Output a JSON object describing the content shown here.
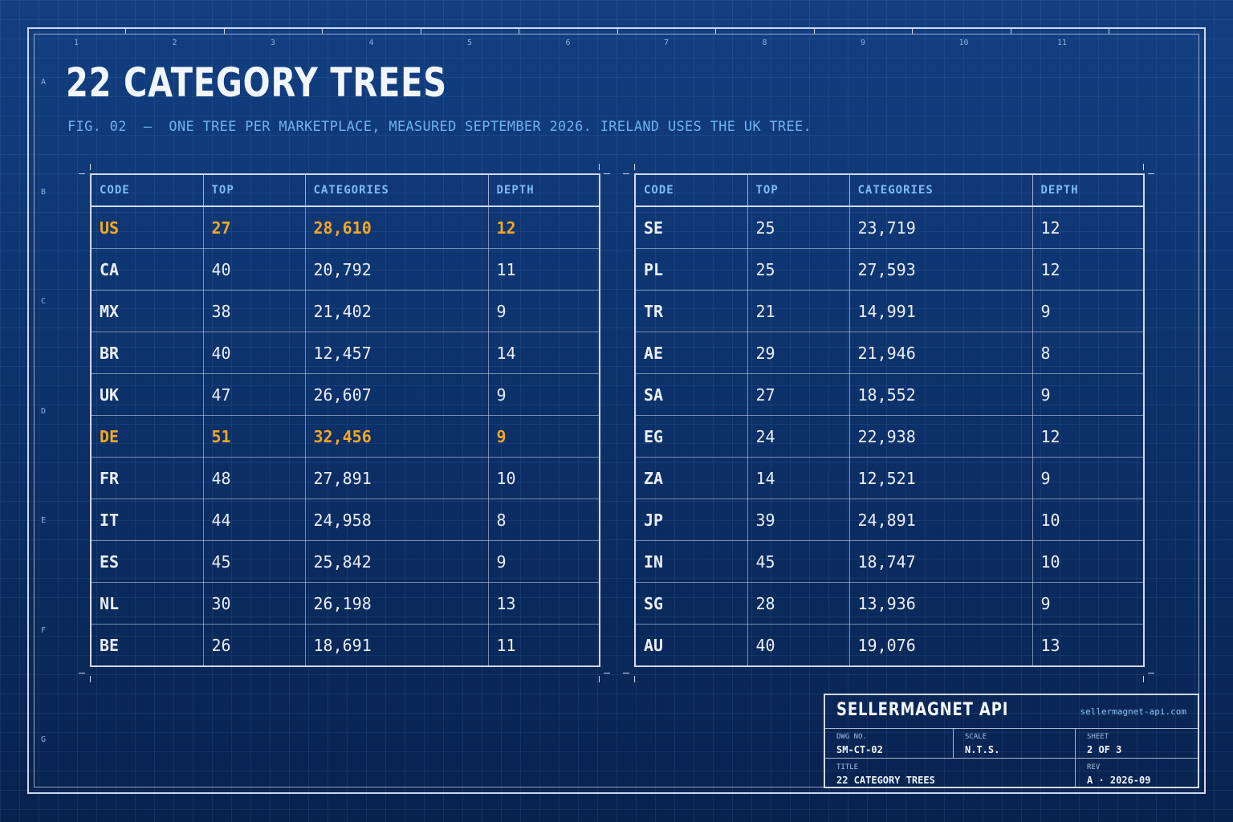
{
  "grid_columns": [
    "1",
    "2",
    "3",
    "4",
    "5",
    "6",
    "7",
    "8",
    "9",
    "10",
    "11"
  ],
  "grid_rows": [
    "A",
    "B",
    "C",
    "D",
    "E",
    "F",
    "G"
  ],
  "title": "22 CATEGORY TREES",
  "subtitle": "FIG. 02  —  ONE TREE PER MARKETPLACE, MEASURED SEPTEMBER 2026. IRELAND USES THE UK TREE.",
  "table_headers": [
    "CODE",
    "TOP",
    "CATEGORIES",
    "DEPTH"
  ],
  "tables": [
    [
      {
        "code": "US",
        "top": "27",
        "categories": "28,610",
        "depth": "12",
        "highlight": true
      },
      {
        "code": "CA",
        "top": "40",
        "categories": "20,792",
        "depth": "11",
        "highlight": false
      },
      {
        "code": "MX",
        "top": "38",
        "categories": "21,402",
        "depth": "9",
        "highlight": false
      },
      {
        "code": "BR",
        "top": "40",
        "categories": "12,457",
        "depth": "14",
        "highlight": false
      },
      {
        "code": "UK",
        "top": "47",
        "categories": "26,607",
        "depth": "9",
        "highlight": false
      },
      {
        "code": "DE",
        "top": "51",
        "categories": "32,456",
        "depth": "9",
        "highlight": true
      },
      {
        "code": "FR",
        "top": "48",
        "categories": "27,891",
        "depth": "10",
        "highlight": false
      },
      {
        "code": "IT",
        "top": "44",
        "categories": "24,958",
        "depth": "8",
        "highlight": false
      },
      {
        "code": "ES",
        "top": "45",
        "categories": "25,842",
        "depth": "9",
        "highlight": false
      },
      {
        "code": "NL",
        "top": "30",
        "categories": "26,198",
        "depth": "13",
        "highlight": false
      },
      {
        "code": "BE",
        "top": "26",
        "categories": "18,691",
        "depth": "11",
        "highlight": false
      }
    ],
    [
      {
        "code": "SE",
        "top": "25",
        "categories": "23,719",
        "depth": "12",
        "highlight": false
      },
      {
        "code": "PL",
        "top": "25",
        "categories": "27,593",
        "depth": "12",
        "highlight": false
      },
      {
        "code": "TR",
        "top": "21",
        "categories": "14,991",
        "depth": "9",
        "highlight": false
      },
      {
        "code": "AE",
        "top": "29",
        "categories": "21,946",
        "depth": "8",
        "highlight": false
      },
      {
        "code": "SA",
        "top": "27",
        "categories": "18,552",
        "depth": "9",
        "highlight": false
      },
      {
        "code": "EG",
        "top": "24",
        "categories": "22,938",
        "depth": "12",
        "highlight": false
      },
      {
        "code": "ZA",
        "top": "14",
        "categories": "12,521",
        "depth": "9",
        "highlight": false
      },
      {
        "code": "JP",
        "top": "39",
        "categories": "24,891",
        "depth": "10",
        "highlight": false
      },
      {
        "code": "IN",
        "top": "45",
        "categories": "18,747",
        "depth": "10",
        "highlight": false
      },
      {
        "code": "SG",
        "top": "28",
        "categories": "13,936",
        "depth": "9",
        "highlight": false
      },
      {
        "code": "AU",
        "top": "40",
        "categories": "19,076",
        "depth": "13",
        "highlight": false
      }
    ]
  ],
  "title_block": {
    "brand": "SELLERMAGNET API",
    "url": "sellermagnet-api.com",
    "dwg_label": "DWG NO.",
    "dwg_value": "SM-CT-02",
    "scale_label": "SCALE",
    "scale_value": "N.T.S.",
    "sheet_label": "SHEET",
    "sheet_value": "2 OF 3",
    "title_label": "TITLE",
    "title_value": "22 CATEGORY TREES",
    "rev_label": "REV",
    "rev_value": "A · 2026-09"
  }
}
